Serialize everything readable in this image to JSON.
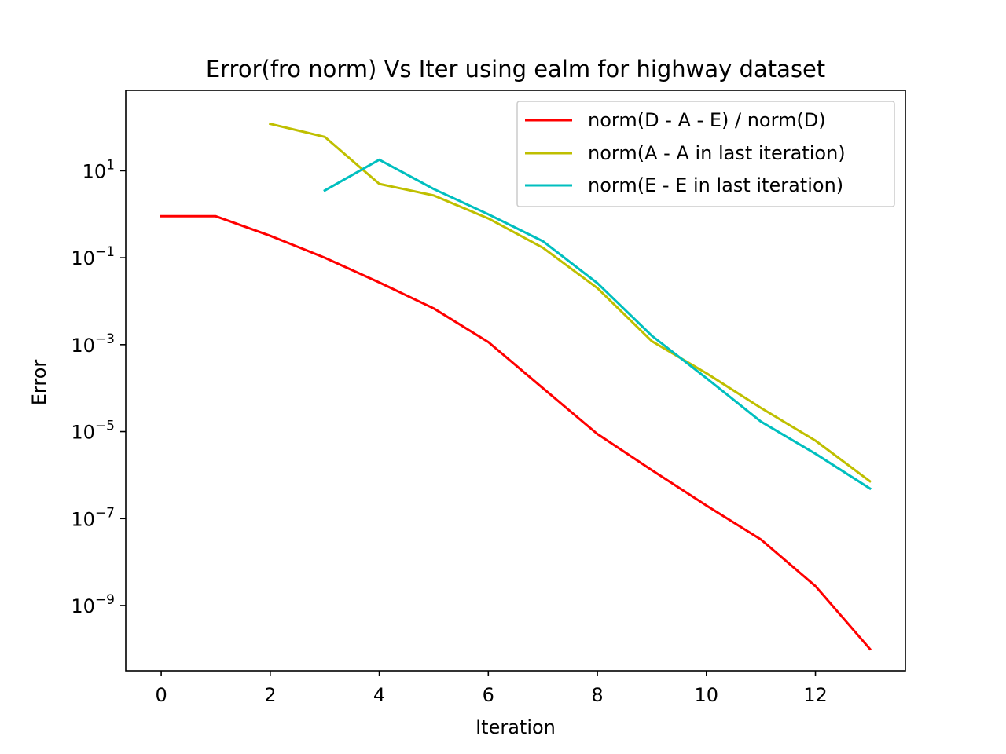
{
  "chart_data": {
    "type": "line",
    "title": "Error(fro norm) Vs Iter using ealm for highway dataset",
    "xlabel": "Iteration",
    "ylabel": "Error",
    "xlim": [
      -0.65,
      13.65
    ],
    "ylim_log10": [
      -10.5,
      2.85
    ],
    "yscale": "log",
    "grid": false,
    "legend_position": "top-right",
    "x_ticks": [
      0,
      2,
      4,
      6,
      8,
      10,
      12
    ],
    "x_tick_labels": [
      "0",
      "2",
      "4",
      "6",
      "8",
      "10",
      "12"
    ],
    "y_tick_exponents": [
      1,
      -1,
      -3,
      -5,
      -7,
      -9
    ],
    "y_tick_labels": [
      {
        "base": "10",
        "exp": "1"
      },
      {
        "base": "10",
        "exp": "−1"
      },
      {
        "base": "10",
        "exp": "−3"
      },
      {
        "base": "10",
        "exp": "−5"
      },
      {
        "base": "10",
        "exp": "−7"
      },
      {
        "base": "10",
        "exp": "−9"
      }
    ],
    "series": [
      {
        "name": "norm(D - A - E) / norm(D)",
        "color": "#ff0000",
        "x": [
          0,
          1,
          2,
          3,
          4,
          5,
          6,
          7,
          8,
          9,
          10,
          11,
          12,
          13
        ],
        "y": [
          0.9,
          0.9,
          0.32,
          0.1,
          0.027,
          0.0068,
          0.00115,
          0.0001,
          8.8e-06,
          1.3e-06,
          2e-07,
          3.3e-08,
          2.8e-09,
          1e-10
        ]
      },
      {
        "name": "norm(A - A in last iteration)",
        "color": "#bfbf00",
        "x": [
          2,
          3,
          4,
          5,
          6,
          7,
          8,
          9,
          10,
          11,
          12,
          13
        ],
        "y": [
          120,
          60,
          5,
          2.7,
          0.8,
          0.17,
          0.02,
          0.0012,
          0.00022,
          3.5e-05,
          6.2e-06,
          7.2e-07
        ]
      },
      {
        "name": "norm(E - E in last iteration)",
        "color": "#00bfbf",
        "x": [
          3,
          4,
          5,
          6,
          7,
          8,
          9,
          10,
          11,
          12,
          13
        ],
        "y": [
          3.5,
          18,
          3.8,
          1.0,
          0.24,
          0.026,
          0.0016,
          0.00017,
          1.7e-05,
          3.1e-06,
          4.9e-07
        ]
      }
    ]
  }
}
